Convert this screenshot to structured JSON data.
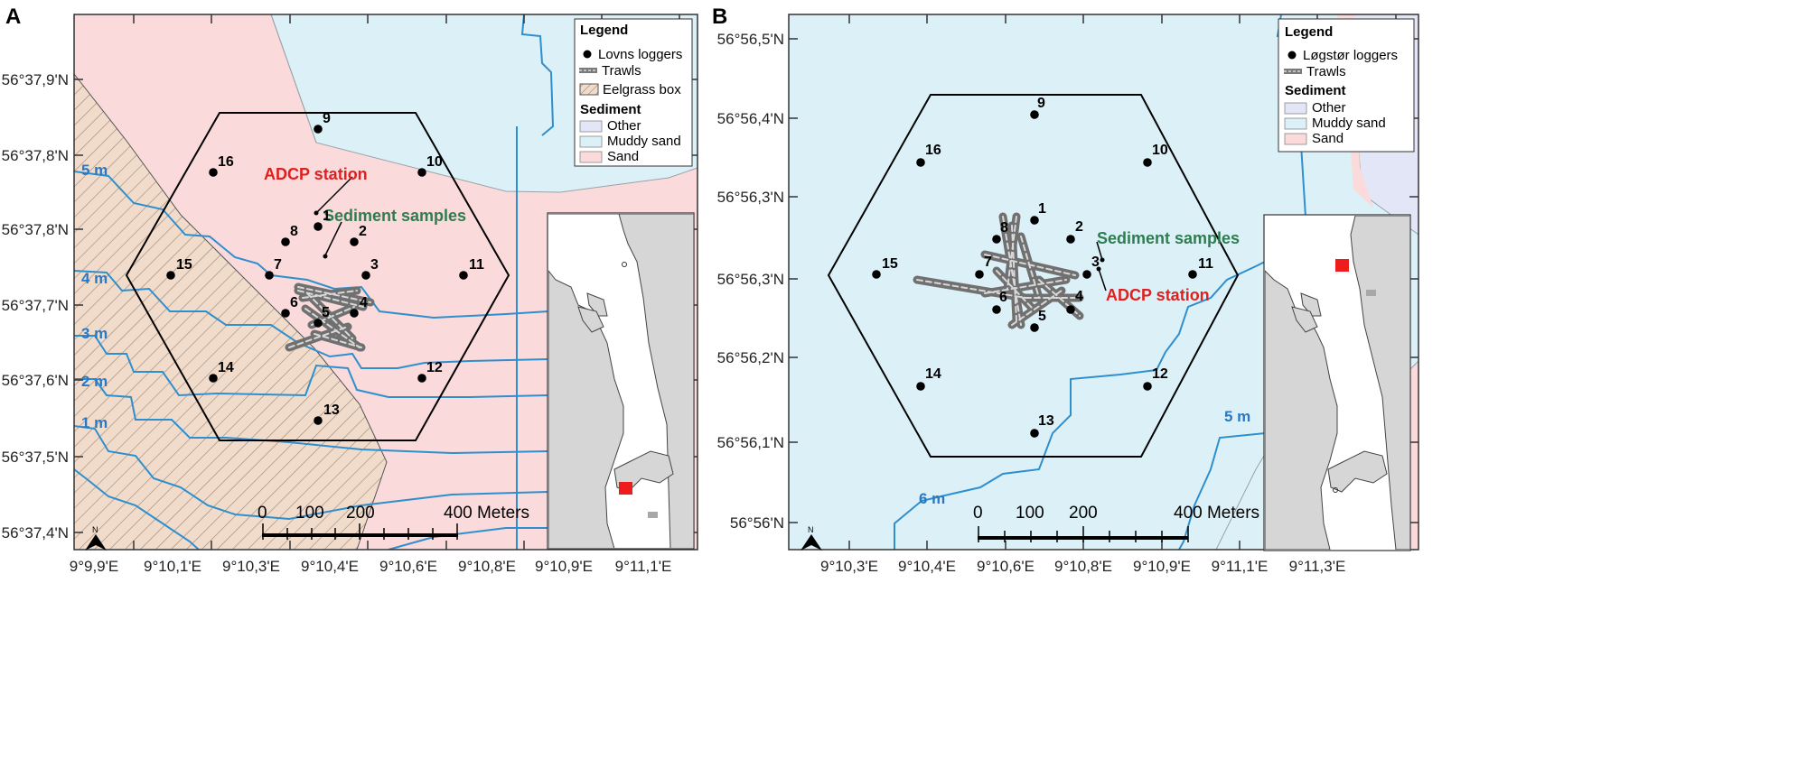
{
  "colors": {
    "sand": "#fadadb",
    "muddy_sand": "#dcf0f8",
    "other": "#e2e6f6",
    "depth_contour": "#2e8fce",
    "depth_label": "#2a78c4",
    "adcp_label": "#e0201f",
    "sediment_label": "#2e7d4f",
    "eelgrass_fill": "#f1dccb",
    "inset_land": "#d6d6d6",
    "inset_marker": "#ee1c1c"
  },
  "panel_a": {
    "letter": "A",
    "lat_labels": [
      "56°37,9'N",
      "56°37,8'N",
      "56°37,8'N",
      "56°37,7'N",
      "56°37,6'N",
      "56°37,5'N",
      "56°37,4'N"
    ],
    "lon_labels": [
      "9°9,9'E",
      "9°10,1'E",
      "9°10,3'E",
      "9°10,4'E",
      "9°10,6'E",
      "9°10,8'E",
      "9°10,9'E",
      "9°11,1'E"
    ],
    "depth_labels": [
      "5 m",
      "4 m",
      "3 m",
      "2 m",
      "1 m"
    ],
    "loggers": [
      "9",
      "16",
      "10",
      "1",
      "8",
      "2",
      "15",
      "7",
      "3",
      "11",
      "6",
      "4",
      "5",
      "14",
      "12",
      "13"
    ],
    "adcp_label": "ADCP station",
    "sediment_label": "Sediment samples",
    "legend": {
      "title": "Legend",
      "loggers": "Lovns loggers",
      "trawls": "Trawls",
      "eelgrass": "Eelgrass box",
      "sediment_title": "Sediment",
      "other": "Other",
      "muddy_sand": "Muddy sand",
      "sand": "Sand"
    },
    "scale": {
      "ticks": [
        "0",
        "100",
        "200",
        "400 Meters"
      ]
    },
    "north": "N",
    "inset": {
      "marker_color": "#ee1c1c"
    }
  },
  "panel_b": {
    "letter": "B",
    "lat_labels": [
      "56°56,5'N",
      "56°56,4'N",
      "56°56,3'N",
      "56°56,3'N",
      "56°56,2'N",
      "56°56,1'N",
      "56°56'N"
    ],
    "lon_labels": [
      "9°10,3'E",
      "9°10,4'E",
      "9°10,6'E",
      "9°10,8'E",
      "9°10,9'E",
      "9°11,1'E",
      "9°11,3'E"
    ],
    "depth_labels": [
      "6 m",
      "5 m"
    ],
    "loggers": [
      "9",
      "16",
      "10",
      "1",
      "8",
      "2",
      "15",
      "7",
      "3",
      "11",
      "6",
      "4",
      "5",
      "14",
      "12",
      "13"
    ],
    "adcp_label": "ADCP station",
    "sediment_label": "Sediment samples",
    "legend": {
      "title": "Legend",
      "loggers": "Løgstør loggers",
      "trawls": "Trawls",
      "sediment_title": "Sediment",
      "other": "Other",
      "muddy_sand": "Muddy sand",
      "sand": "Sand"
    },
    "scale": {
      "ticks": [
        "0",
        "100",
        "200",
        "400 Meters"
      ]
    },
    "north": "N",
    "inset": {
      "marker_color": "#ee1c1c"
    }
  }
}
